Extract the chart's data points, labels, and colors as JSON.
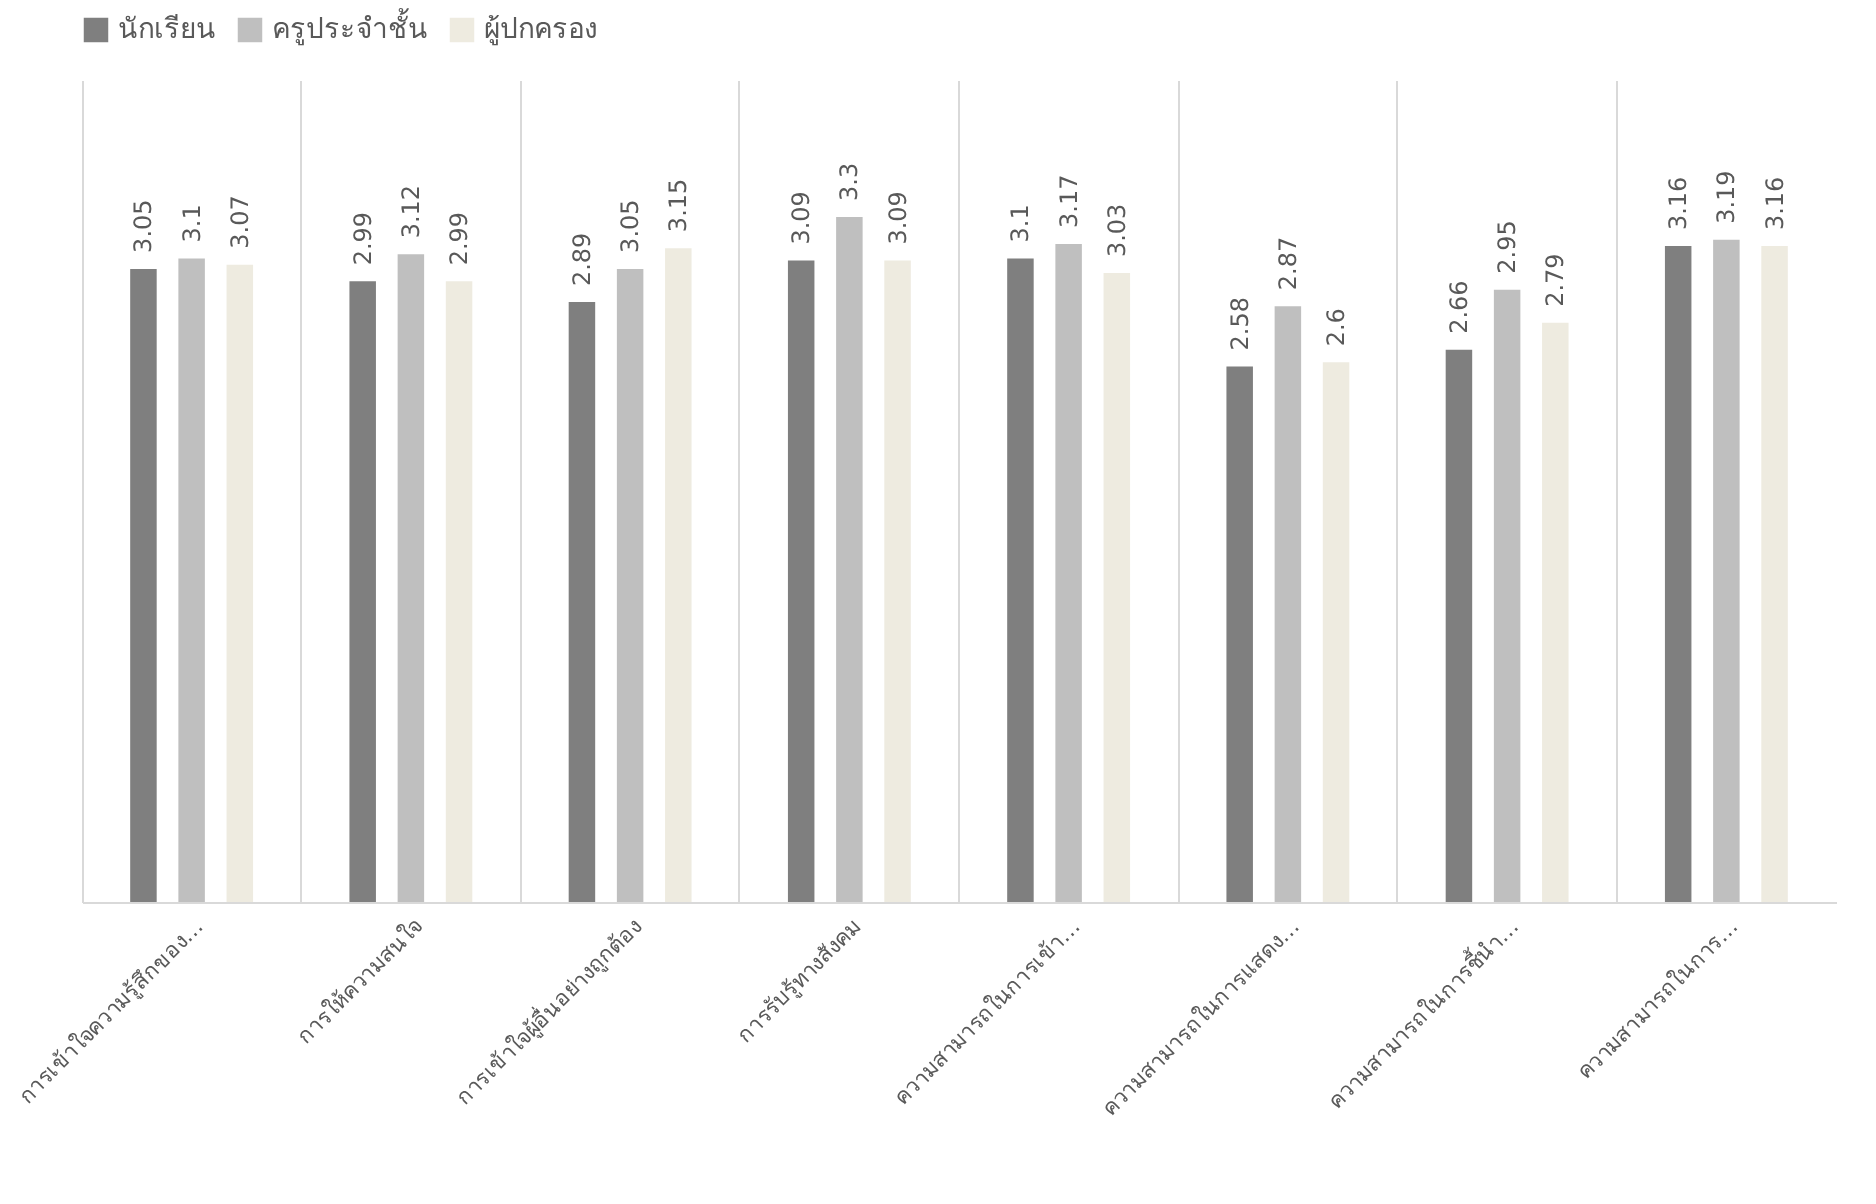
{
  "chart_data": {
    "type": "bar",
    "categories": [
      "การเข้าใจความรู้สึกของ…",
      "การให้ความสนใจ",
      "การเข้าใจผู้อื่นอย่างถูกต้อง",
      "การรับรู้ทางสังคม",
      "ความสามารถในการเข้า…",
      "ความสามารถในการแสดง…",
      "ความสามารถในการชี้นำ…",
      "ความสามารถในการ…"
    ],
    "series": [
      {
        "name": "นักเรียน",
        "color": "#7f7f7f",
        "values": [
          3.05,
          2.99,
          2.89,
          3.09,
          3.1,
          2.58,
          2.66,
          3.16
        ]
      },
      {
        "name": "ครูประจำชั้น",
        "color": "#bfbfbf",
        "values": [
          3.1,
          3.12,
          3.05,
          3.3,
          3.17,
          2.87,
          2.95,
          3.19
        ]
      },
      {
        "name": "ผู้ปกครอง",
        "color": "#eeebe0",
        "values": [
          3.07,
          2.99,
          3.15,
          3.09,
          3.03,
          2.6,
          2.79,
          3.16
        ]
      }
    ],
    "data_labels": true,
    "grid": "x",
    "legend": "top"
  }
}
